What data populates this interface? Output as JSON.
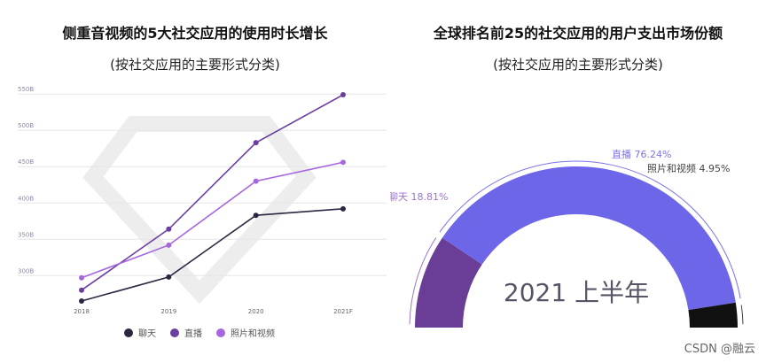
{
  "watermark": "CSDN @融云",
  "chart_data": [
    {
      "type": "line",
      "title": "侧重音视频的5大社交应用的使用时长增长",
      "subtitle": "(按社交应用的主要形式分类)",
      "categories": [
        "2018",
        "2019",
        "2020",
        "2021F"
      ],
      "ytick_labels": [
        "300B",
        "350B",
        "400B",
        "450B",
        "500B",
        "550B"
      ],
      "yticks": [
        300,
        350,
        400,
        450,
        500,
        550
      ],
      "ylim": [
        265,
        560
      ],
      "grid": true,
      "legend_position": "bottom",
      "series": [
        {
          "name": "聊天",
          "color": "#2b2740",
          "values": [
            265,
            298,
            383,
            392
          ]
        },
        {
          "name": "直播",
          "color": "#6b3fa0",
          "values": [
            280,
            364,
            483,
            549
          ]
        },
        {
          "name": "照片和视频",
          "color": "#a766e0",
          "values": [
            297,
            342,
            430,
            456
          ]
        }
      ]
    },
    {
      "type": "pie",
      "style": "half-donut",
      "title": "全球排名前25的社交应用的用户支出市场份额",
      "subtitle": "(按社交应用的主要形式分类)",
      "center_label": "2021 上半年",
      "slices": [
        {
          "name": "聊天",
          "value": 18.81,
          "label": "聊天 18.81%",
          "color": "#6a3d96",
          "label_color": "#9b75c9"
        },
        {
          "name": "直播",
          "value": 76.24,
          "label": "直播 76.24%",
          "color": "#6e66e8",
          "label_color": "#7b73e6"
        },
        {
          "name": "照片和视频",
          "value": 4.95,
          "label": "照片和视频 4.95%",
          "color": "#111111",
          "label_color": "#444444"
        }
      ]
    }
  ]
}
